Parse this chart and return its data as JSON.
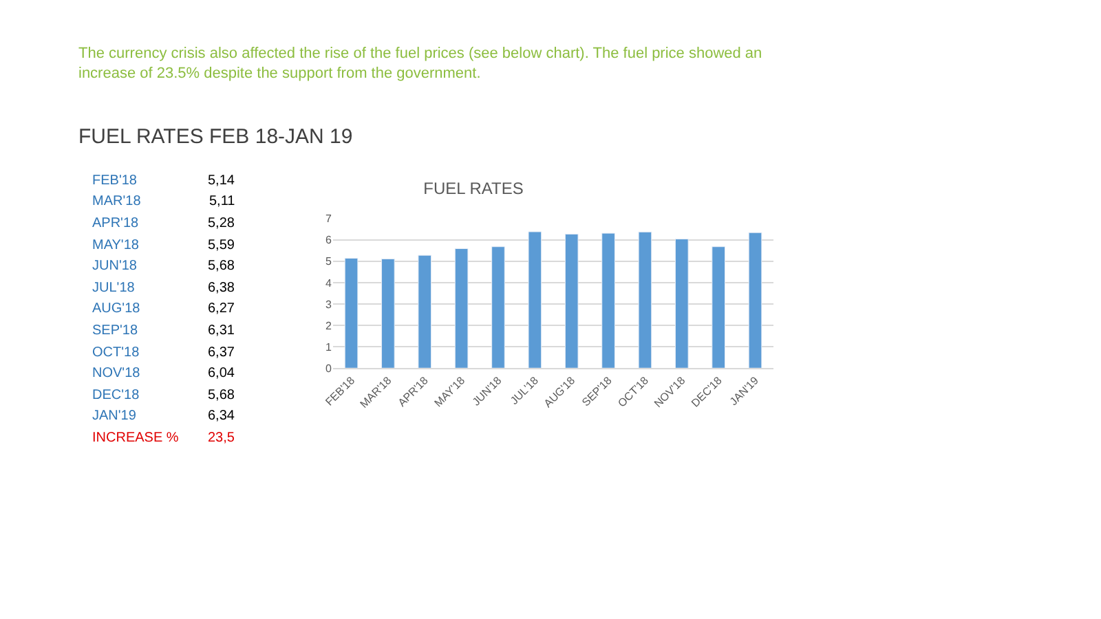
{
  "chart_data": {
    "type": "bar",
    "title": "FUEL RATES",
    "categories": [
      "FEB'18",
      "MAR'18",
      "APR'18",
      "MAY'18",
      "JUN'18",
      "JUL'18",
      "AUG'18",
      "SEP'18",
      "OCT'18",
      "NOV'18",
      "DEC'18",
      "JAN'19"
    ],
    "values": [
      5.14,
      5.11,
      5.28,
      5.59,
      5.68,
      6.38,
      6.27,
      6.31,
      6.37,
      6.04,
      5.68,
      6.34
    ],
    "color": "#5b9bd5",
    "ylim": [
      0,
      7
    ],
    "yticks": [
      0,
      1,
      2,
      3,
      4,
      5,
      6,
      7
    ],
    "grid": "y",
    "annotations": [
      "The currency crisis also affected the rise of the fuel prices (see below chart). The fuel price showed an increase of 23.5% despite the support from the government.",
      "FUEL RATES FEB 18-JAN 19",
      "FEB'18",
      "5,14",
      "MAR'18",
      "5,11",
      "APR'18",
      "5,28",
      "MAY'18",
      "5,59",
      "JUN'18",
      "5,68",
      "JUL'18",
      "6,38",
      "AUG'18",
      "6,27",
      "SEP'18",
      "6,31",
      "OCT'18",
      "6,37",
      "NOV'18",
      "6,04",
      "DEC'18",
      "5,68",
      "JAN'19",
      "6,34",
      "INCREASE %",
      "23,5"
    ]
  }
}
